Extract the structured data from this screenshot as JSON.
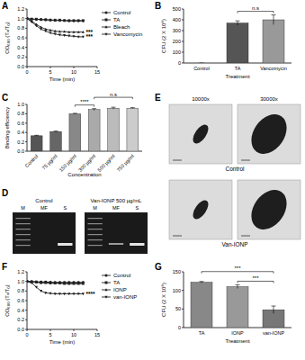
{
  "chart_data": [
    {
      "type": "line",
      "title": "A",
      "x_label": "Time (min)",
      "y_label": "OD₆₀₀ (Tₓ/T₀)",
      "x": [
        0,
        1,
        2,
        3,
        4,
        5,
        6,
        7,
        8,
        9,
        10,
        11,
        12
      ],
      "xlim": [
        0,
        15
      ],
      "xticks": [
        0,
        5,
        10,
        15
      ],
      "ylim": [
        0,
        1.2
      ],
      "yticks": [
        {
          "value": 0,
          "label": "0.0"
        },
        0.2,
        0.4,
        0.6,
        0.8,
        {
          "value": 1,
          "label": "1.0"
        },
        1.2
      ],
      "legend": "right",
      "series": [
        {
          "name": "Control",
          "color": "#222222",
          "marker": "circle",
          "values": [
            1.0,
            0.99,
            0.98,
            0.98,
            0.97,
            0.97,
            0.96,
            0.96,
            0.96,
            0.95,
            0.95,
            0.95,
            0.95
          ]
        },
        {
          "name": "TA",
          "color": "#222222",
          "marker": "square",
          "values": [
            1.0,
            0.99,
            0.99,
            0.98,
            0.98,
            0.97,
            0.97,
            0.97,
            0.96,
            0.96,
            0.96,
            0.96,
            0.96
          ]
        },
        {
          "name": "Bleach",
          "color": "#222222",
          "marker": "triangle",
          "values": [
            1.0,
            0.95,
            0.88,
            0.82,
            0.78,
            0.76,
            0.74,
            0.73,
            0.73,
            0.72,
            0.72,
            0.72,
            0.72
          ]
        },
        {
          "name": "Vancomycin",
          "color": "#222222",
          "marker": "triangle-down",
          "values": [
            1.0,
            0.93,
            0.85,
            0.78,
            0.74,
            0.7,
            0.68,
            0.66,
            0.65,
            0.64,
            0.63,
            0.62,
            0.62
          ]
        }
      ],
      "annotations": [
        {
          "text": "***",
          "series": 2
        },
        {
          "text": "***",
          "series": 3
        }
      ]
    },
    {
      "type": "bar",
      "title": "B",
      "x_label": "Treatment",
      "y_label": "CFU (2 X 10⁶)",
      "categories": [
        "Control",
        "TA",
        "Vancomycin"
      ],
      "values": [
        0,
        370,
        400
      ],
      "errors": [
        0,
        20,
        45
      ],
      "colors": [
        "#777777",
        "#555555",
        "#999999"
      ],
      "ylim": [
        0,
        500
      ],
      "yticks": [
        0,
        100,
        200,
        300,
        400,
        500
      ],
      "annotations": [
        {
          "text": "n.s",
          "from": 1,
          "to": 2
        }
      ]
    },
    {
      "type": "bar",
      "title": "C",
      "x_label": "Concentration",
      "y_label": "Binding efficiency",
      "categories": [
        "Control",
        "75 µg/ml",
        "150 µg/ml",
        "300 µg/ml",
        "500 µg/ml",
        "750 µg/ml"
      ],
      "values": [
        0.33,
        0.42,
        0.8,
        0.89,
        0.92,
        0.92
      ],
      "errors": [
        0.01,
        0.01,
        0.01,
        0.02,
        0.02,
        0.01
      ],
      "colors": [
        "#555555",
        "#666666",
        "#888888",
        "#aaaaaa",
        "#bbbbbb",
        "#cccccc"
      ],
      "ylim": [
        0,
        1
      ],
      "yticks": [
        {
          "value": 0,
          "label": "0.0"
        },
        0.2,
        0.4,
        0.6,
        0.8,
        {
          "value": 1,
          "label": "1.0"
        }
      ],
      "annotations": [
        {
          "text": "****",
          "from": 2,
          "to": 3
        },
        {
          "text": "n.s",
          "from": 3,
          "to": 5
        }
      ]
    },
    {
      "type": "line",
      "title": "F",
      "x_label": "Time (min)",
      "y_label": "OD₆₀₀ (Tₓ/T₀)",
      "x": [
        0,
        1,
        2,
        3,
        4,
        5,
        6,
        7,
        8,
        9,
        10,
        11,
        12
      ],
      "xlim": [
        0,
        15
      ],
      "xticks": [
        0,
        5,
        10,
        15
      ],
      "ylim": [
        0,
        1.2
      ],
      "yticks": [
        {
          "value": 0,
          "label": "0.0"
        },
        0.2,
        0.4,
        0.6,
        0.8,
        {
          "value": 1,
          "label": "1.0"
        },
        1.2
      ],
      "legend": "right",
      "series": [
        {
          "name": "Control",
          "color": "#222222",
          "marker": "circle",
          "values": [
            1.0,
            1.0,
            0.99,
            0.99,
            0.99,
            0.98,
            0.98,
            0.98,
            0.98,
            0.98,
            0.98,
            0.98,
            0.98
          ]
        },
        {
          "name": "TA",
          "color": "#222222",
          "marker": "square",
          "values": [
            1.0,
            0.99,
            0.99,
            0.98,
            0.98,
            0.98,
            0.97,
            0.97,
            0.97,
            0.97,
            0.97,
            0.97,
            0.97
          ]
        },
        {
          "name": "IONP",
          "color": "#222222",
          "marker": "triangle",
          "values": [
            1.0,
            0.99,
            0.98,
            0.97,
            0.97,
            0.96,
            0.96,
            0.96,
            0.95,
            0.95,
            0.95,
            0.95,
            0.95
          ]
        },
        {
          "name": "van-IONP",
          "color": "#222222",
          "marker": "triangle-down",
          "values": [
            1.0,
            0.97,
            0.88,
            0.8,
            0.76,
            0.75,
            0.74,
            0.74,
            0.74,
            0.74,
            0.74,
            0.74,
            0.74
          ]
        }
      ],
      "annotations": [
        {
          "text": "****",
          "series": 3
        }
      ]
    },
    {
      "type": "bar",
      "title": "G",
      "x_label": "Treatment",
      "y_label": "CFU (2 X 10⁶)",
      "categories": [
        "TA",
        "IONP",
        "van-IONP"
      ],
      "values": [
        122,
        110,
        48
      ],
      "errors": [
        2,
        5,
        10
      ],
      "colors": [
        "#888888",
        "#999999",
        "#777777"
      ],
      "ylim": [
        0,
        150
      ],
      "yticks": [
        0,
        50,
        100,
        150
      ],
      "annotations": [
        {
          "text": "***",
          "from": 1,
          "to": 2
        },
        {
          "text": "***",
          "from": 0,
          "to": 2
        }
      ]
    }
  ],
  "gel": {
    "title": "D",
    "gels": [
      {
        "label": "Control",
        "lanes": [
          "M",
          "MF",
          "S"
        ]
      },
      {
        "label": "Van-IONP 500 µg/mL",
        "lanes": [
          "M",
          "MF",
          "S"
        ]
      }
    ]
  },
  "micrographs": {
    "title": "E",
    "magnifications": [
      "10000x",
      "30000x"
    ],
    "rows": [
      "Control",
      "Van-IONP"
    ]
  }
}
